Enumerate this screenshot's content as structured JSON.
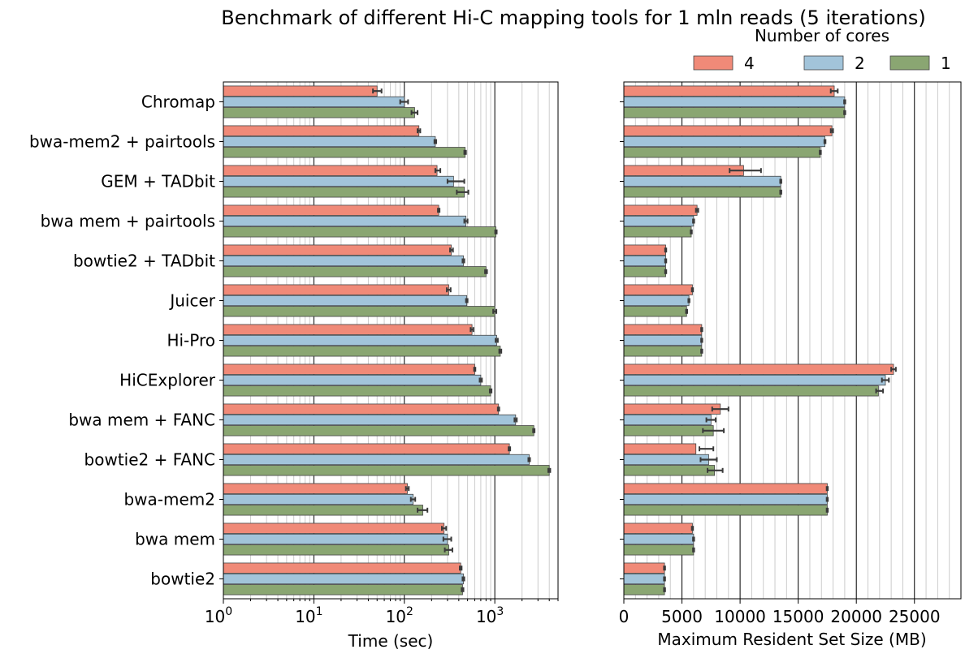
{
  "chart_data": {
    "type": "bar",
    "title": "Benchmark of different Hi-C mapping tools for 1 mln reads (5 iterations)",
    "legend": {
      "title": "Number of cores",
      "placement": "top-right"
    },
    "categories": [
      "Chromap",
      "bwa-mem2 + pairtools",
      "GEM + TADbit",
      "bwa mem + pairtools",
      "bowtie2 + TADbit",
      "Juicer",
      "Hi-Pro",
      "HiCExplorer",
      "bwa mem + FANC",
      "bowtie2 + FANC",
      "bwa-mem2",
      "bwa mem",
      "bowtie2"
    ],
    "series": [
      {
        "name": "4",
        "color": "#f08a78",
        "time": [
          50,
          145,
          230,
          240,
          330,
          310,
          560,
          600,
          1100,
          1450,
          108,
          275,
          420
        ],
        "time_err": [
          [
            45,
            56
          ],
          [
            140,
            150
          ],
          [
            220,
            250
          ],
          [
            235,
            245
          ],
          [
            320,
            345
          ],
          [
            295,
            325
          ],
          [
            540,
            580
          ],
          [
            590,
            610
          ],
          [
            1080,
            1120
          ],
          [
            1420,
            1480
          ],
          [
            104,
            112
          ],
          [
            260,
            290
          ],
          [
            410,
            430
          ]
        ],
        "memory": [
          18100,
          17900,
          10300,
          6300,
          3600,
          5900,
          6700,
          23200,
          8300,
          6200,
          17500,
          5900,
          3500
        ],
        "memory_err": [
          [
            17800,
            18400
          ],
          [
            17800,
            18000
          ],
          [
            9100,
            11800
          ],
          [
            6200,
            6400
          ],
          [
            3550,
            3650
          ],
          [
            5850,
            5950
          ],
          [
            6650,
            6750
          ],
          [
            23000,
            23400
          ],
          [
            7600,
            9000
          ],
          [
            6500,
            7700
          ],
          [
            17450,
            17550
          ],
          [
            5850,
            5950
          ],
          [
            3450,
            3550
          ]
        ]
      },
      {
        "name": "2",
        "color": "#a2c4da",
        "time": [
          100,
          220,
          350,
          480,
          450,
          490,
          1050,
          700,
          1700,
          2400,
          125,
          300,
          450
        ],
        "time_err": [
          [
            90,
            110
          ],
          [
            215,
            225
          ],
          [
            300,
            460
          ],
          [
            460,
            500
          ],
          [
            440,
            460
          ],
          [
            480,
            500
          ],
          [
            1020,
            1080
          ],
          [
            680,
            720
          ],
          [
            1650,
            1750
          ],
          [
            2350,
            2450
          ],
          [
            118,
            132
          ],
          [
            270,
            330
          ],
          [
            440,
            460
          ]
        ],
        "memory": [
          19000,
          17300,
          13500,
          6000,
          3600,
          5600,
          6700,
          22500,
          7500,
          7300,
          17500,
          6000,
          3500
        ],
        "memory_err": [
          [
            18950,
            19050
          ],
          [
            17250,
            17350
          ],
          [
            13450,
            13550
          ],
          [
            5950,
            6050
          ],
          [
            3550,
            3650
          ],
          [
            5550,
            5650
          ],
          [
            6650,
            6750
          ],
          [
            22200,
            22800
          ],
          [
            7100,
            7900
          ],
          [
            6600,
            8000
          ],
          [
            17450,
            17550
          ],
          [
            5950,
            6050
          ],
          [
            3450,
            3550
          ]
        ]
      },
      {
        "name": "1",
        "color": "#8aa672",
        "time": [
          130,
          470,
          460,
          1030,
          800,
          1000,
          1150,
          900,
          2700,
          4000,
          160,
          310,
          440
        ],
        "time_err": [
          [
            120,
            140
          ],
          [
            460,
            480
          ],
          [
            380,
            510
          ],
          [
            1010,
            1050
          ],
          [
            780,
            820
          ],
          [
            960,
            1040
          ],
          [
            1120,
            1180
          ],
          [
            880,
            920
          ],
          [
            2650,
            2750
          ],
          [
            3900,
            4100
          ],
          [
            140,
            180
          ],
          [
            280,
            340
          ],
          [
            430,
            450
          ]
        ],
        "memory": [
          19000,
          16900,
          13500,
          5800,
          3600,
          5400,
          6700,
          21900,
          7700,
          7800,
          17500,
          6000,
          3500
        ],
        "memory_err": [
          [
            18950,
            19050
          ],
          [
            16850,
            16950
          ],
          [
            13450,
            13550
          ],
          [
            5750,
            5850
          ],
          [
            3550,
            3650
          ],
          [
            5350,
            5450
          ],
          [
            6650,
            6750
          ],
          [
            21700,
            22300
          ],
          [
            6800,
            8600
          ],
          [
            7200,
            8500
          ],
          [
            17450,
            17550
          ],
          [
            5950,
            6050
          ],
          [
            3450,
            3550
          ]
        ]
      }
    ],
    "left_axis": {
      "xlabel": "Time (sec)",
      "scale": "log",
      "xlim": [
        1,
        5000
      ],
      "major_ticks": [
        1,
        10,
        100,
        1000
      ],
      "tick_labels": [
        "10",
        "10",
        "10",
        "10"
      ],
      "tick_exponents": [
        "0",
        "1",
        "2",
        "3"
      ]
    },
    "right_axis": {
      "xlabel": "Maximum Resident Set Size (MB)",
      "scale": "linear",
      "xlim": [
        0,
        29000
      ],
      "major_ticks": [
        0,
        5000,
        10000,
        15000,
        20000,
        25000
      ],
      "tick_labels": [
        "0",
        "5000",
        "10000",
        "15000",
        "20000",
        "25000"
      ],
      "minor_step": 1000
    },
    "grid": true
  }
}
